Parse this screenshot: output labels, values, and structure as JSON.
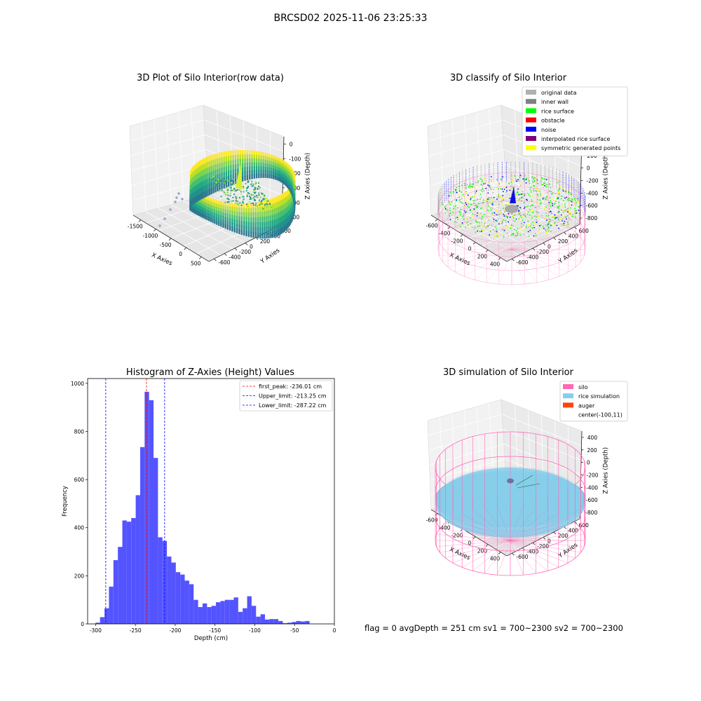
{
  "figure": {
    "suptitle": "BRCSD02 2025-11-06 23:25:33",
    "footer": "flag = 0     avgDepth = 251 cm  sv1 = 700~2300  sv2 = 700~2300"
  },
  "colors": {
    "original": "#b0b0b0",
    "inner_wall": "#808080",
    "rice_surface": "#00ff00",
    "obstacle": "#ff0000",
    "noise": "#0000ff",
    "interpolated": "#800080",
    "symmetric": "#ffff00",
    "silo": "#ff69b4",
    "rice_sim": "#87ceeb",
    "auger": "#ff4500",
    "hist_bar": "#4b4bff",
    "first_peak_line": "#ff0000",
    "limit_line": "#0000ff"
  },
  "chart_data": [
    {
      "type": "scatter",
      "title": "3D Plot of Silo Interior(row data)",
      "projection": "3d",
      "xlabel": "X Axies",
      "ylabel": "Y Axies",
      "zlabel": "Z Axies (Depth)",
      "xticks": [
        "-1500",
        "-1000",
        "-500",
        "0",
        "500"
      ],
      "yticks": [
        "600",
        "400",
        "200",
        "0",
        "-200",
        "-400",
        "-600"
      ],
      "zticks": [
        "0",
        "-100",
        "-200",
        "-300",
        "-400",
        "-500"
      ],
      "colormap": "viridis"
    },
    {
      "type": "scatter",
      "title": "3D classify of Silo Interior",
      "projection": "3d",
      "xlabel": "X Axies",
      "ylabel": "Y Axies",
      "zlabel": "Z Axies (Depth)",
      "xticks": [
        "-600",
        "-400",
        "-200",
        "0",
        "200",
        "400"
      ],
      "yticks": [
        "600",
        "400",
        "200",
        "0",
        "-200",
        "-400",
        "-600"
      ],
      "zticks": [
        "400",
        "200",
        "0",
        "-200",
        "-400",
        "-600",
        "-800"
      ],
      "legend": [
        "original data",
        "inner wall",
        "rice surface",
        "obstacle",
        "noise",
        "interpolated rice surface",
        "symmetric generated points"
      ],
      "legend_position": "top-right"
    },
    {
      "type": "bar",
      "title": "Histogram of Z-Axies (Height) Values",
      "xlabel": "Depth (cm)",
      "ylabel": "Frequency",
      "xlim": [
        -310,
        0
      ],
      "ylim": [
        0,
        1020
      ],
      "xticks": [
        -300,
        -250,
        -200,
        -150,
        -100,
        -50,
        0
      ],
      "yticks": [
        0,
        200,
        400,
        600,
        800,
        1000
      ],
      "bin_start": -300,
      "bin_width": 5.6,
      "values": [
        5,
        28,
        65,
        155,
        265,
        320,
        430,
        425,
        440,
        535,
        735,
        965,
        930,
        690,
        360,
        345,
        280,
        255,
        215,
        205,
        180,
        165,
        100,
        70,
        85,
        70,
        75,
        90,
        95,
        100,
        100,
        110,
        50,
        65,
        115,
        75,
        30,
        40,
        18,
        20,
        20,
        12,
        3,
        5,
        8,
        12,
        10,
        12
      ],
      "vlines": [
        {
          "name": "first_peak: -236.01 cm",
          "x": -236.01,
          "color": "#ff0000"
        },
        {
          "name": "Upper_limit: -213.25 cm",
          "x": -213.25,
          "color": "#0000ff"
        },
        {
          "name": "Lower_limit: -287.22 cm",
          "x": -287.22,
          "color": "#0000ff"
        }
      ],
      "legend_position": "top-right"
    },
    {
      "type": "scatter",
      "title": "3D simulation of Silo Interior",
      "projection": "3d",
      "xlabel": "X Axies",
      "ylabel": "Y Axies",
      "zlabel": "Z Axies (Depth)",
      "xticks": [
        "-600",
        "-400",
        "-200",
        "0",
        "200",
        "400"
      ],
      "yticks": [
        "600",
        "400",
        "200",
        "0",
        "-200",
        "-400",
        "-600"
      ],
      "zticks": [
        "400",
        "200",
        "0",
        "-200",
        "-400",
        "-600",
        "-800"
      ],
      "legend": [
        "silo",
        "rice simulation",
        "auger",
        "center(-100,11)"
      ],
      "legend_position": "top-right"
    }
  ]
}
